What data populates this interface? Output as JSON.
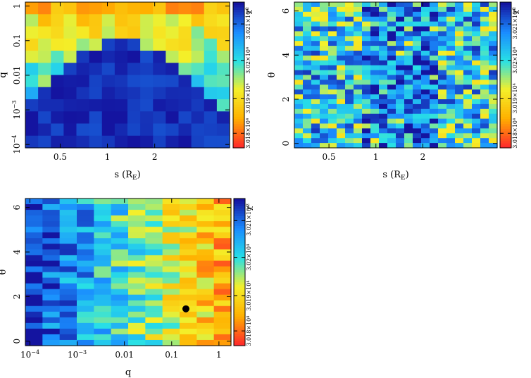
{
  "colorbar": {
    "label": "χ²",
    "ticks": [
      "3.018×10⁴",
      "3.019×10⁴",
      "3.02×10⁴",
      "3.021×10⁴"
    ],
    "ticks_alt": [
      "3.018×10⁴",
      "3.019×10⁴",
      "3.02×10⁴",
      "3.021×10⁴"
    ],
    "colormap": [
      "#ff2a2a",
      "#ffb000",
      "#f4f02a",
      "#28e0e6",
      "#1a8cff",
      "#1414a0"
    ]
  },
  "chart_data": [
    {
      "type": "heatmap",
      "title": "",
      "xlabel": "s (R_E)",
      "xlabel_main": "s (R",
      "xlabel_sub": "E",
      "xlabel_end": ")",
      "ylabel": "q",
      "xscale": "log",
      "yscale": "log",
      "xlim": [
        0.3,
        6.0
      ],
      "ylim": [
        8e-05,
        1.3
      ],
      "xticks": [
        {
          "v": 0.5,
          "t": "0.5"
        },
        {
          "v": 1,
          "t": "1"
        },
        {
          "v": 2,
          "t": "2"
        }
      ],
      "yticks": [
        {
          "v": 0.0001,
          "t": "10",
          "sup": "−4"
        },
        {
          "v": 0.001,
          "t": "10",
          "sup": "−3"
        },
        {
          "v": 0.01,
          "t": "0.01"
        },
        {
          "v": 0.1,
          "t": "0.1"
        },
        {
          "v": 1,
          "t": "1"
        }
      ],
      "grid": {
        "nx": 16,
        "ny": 12
      },
      "pattern": "s-q",
      "seed": 11
    },
    {
      "type": "heatmap",
      "title": "",
      "xlabel": "s (R_E)",
      "xlabel_main": "s (R",
      "xlabel_sub": "E",
      "xlabel_end": ")",
      "ylabel": "θ",
      "xscale": "log",
      "yscale": "linear",
      "xlim": [
        0.3,
        6.0
      ],
      "ylim": [
        -0.2,
        6.4
      ],
      "xticks": [
        {
          "v": 0.5,
          "t": "0.5"
        },
        {
          "v": 1,
          "t": "1"
        },
        {
          "v": 2,
          "t": "2"
        }
      ],
      "yticks": [
        {
          "v": 0,
          "t": "0"
        },
        {
          "v": 2,
          "t": "2"
        },
        {
          "v": 4,
          "t": "4"
        },
        {
          "v": 6,
          "t": "6"
        }
      ],
      "grid": {
        "nx": 24,
        "ny": 30
      },
      "pattern": "s-theta",
      "seed": 23
    },
    {
      "type": "heatmap",
      "title": "",
      "xlabel": "q",
      "xlabel_main": "q",
      "xlabel_sub": "",
      "xlabel_end": "",
      "ylabel": "θ",
      "xscale": "log",
      "yscale": "linear",
      "xlim": [
        8e-05,
        1.8
      ],
      "ylim": [
        -0.2,
        6.4
      ],
      "xticks": [
        {
          "v": 0.0001,
          "t": "10",
          "sup": "−4"
        },
        {
          "v": 0.001,
          "t": "10",
          "sup": "−3"
        },
        {
          "v": 0.01,
          "t": "0.01"
        },
        {
          "v": 0.1,
          "t": "0.1"
        },
        {
          "v": 1,
          "t": "1"
        }
      ],
      "yticks": [
        {
          "v": 0,
          "t": "0"
        },
        {
          "v": 2,
          "t": "2"
        },
        {
          "v": 4,
          "t": "4"
        },
        {
          "v": 6,
          "t": "6"
        }
      ],
      "grid": {
        "nx": 12,
        "ny": 26
      },
      "pattern": "q-theta",
      "seed": 37,
      "best_fit_point": {
        "q": 0.2,
        "theta": 1.45
      }
    }
  ]
}
